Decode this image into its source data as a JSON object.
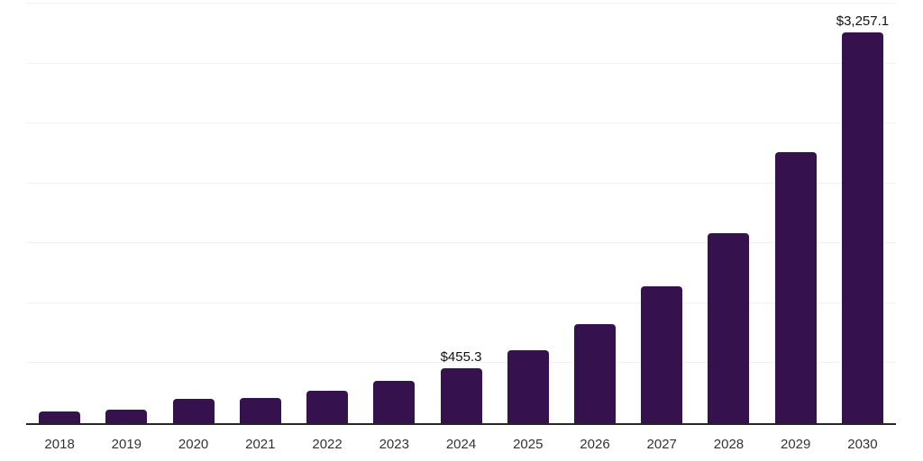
{
  "chart_data": {
    "type": "bar",
    "title": "",
    "xlabel": "",
    "ylabel": "",
    "categories": [
      "2018",
      "2019",
      "2020",
      "2021",
      "2022",
      "2023",
      "2024",
      "2025",
      "2026",
      "2027",
      "2028",
      "2029",
      "2030"
    ],
    "values": [
      100,
      111,
      200,
      209,
      268,
      350,
      455.3,
      610,
      827,
      1140,
      1587,
      2263,
      3257.1
    ],
    "data_labels": [
      {
        "category": "2024",
        "text": "$455.3"
      },
      {
        "category": "2030",
        "text": "$3,257.1"
      }
    ],
    "ylim": [
      0,
      3500
    ],
    "gridline_step": 500,
    "grid": true,
    "legend": false,
    "colors": {
      "bar": "#35124d",
      "gridline": "#f2f2f2",
      "axis_line": "#262626",
      "tick_label": "#333333",
      "data_label": "#111111",
      "background": "#ffffff"
    }
  }
}
